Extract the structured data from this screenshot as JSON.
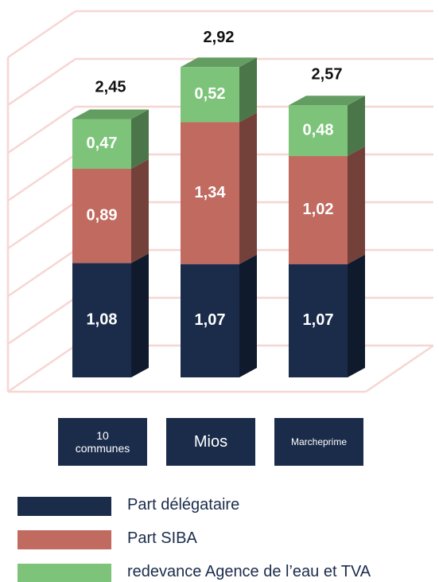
{
  "chart_data": {
    "type": "bar3d-stacked",
    "categories": [
      "10 communes",
      "Mios",
      "Marcheprime"
    ],
    "series": [
      {
        "name": "Part délégataire",
        "color": "#1b2c4b",
        "values": [
          1.08,
          1.07,
          1.07
        ],
        "value_labels": [
          "1,08",
          "1,07",
          "1,07"
        ]
      },
      {
        "name": "Part SIBA",
        "color": "#c06a60",
        "values": [
          0.89,
          1.34,
          1.02
        ],
        "value_labels": [
          "0,89",
          "1,34",
          "1,02"
        ]
      },
      {
        "name": "redevance Agence de l’eau et TVA",
        "color": "#7dc47a",
        "values": [
          0.47,
          0.52,
          0.48
        ],
        "value_labels": [
          "0,47",
          "0,52",
          "0,48"
        ]
      }
    ],
    "totals": [
      2.45,
      2.92,
      2.57
    ],
    "total_labels": [
      "2,45",
      "2,92",
      "2,57"
    ]
  }
}
